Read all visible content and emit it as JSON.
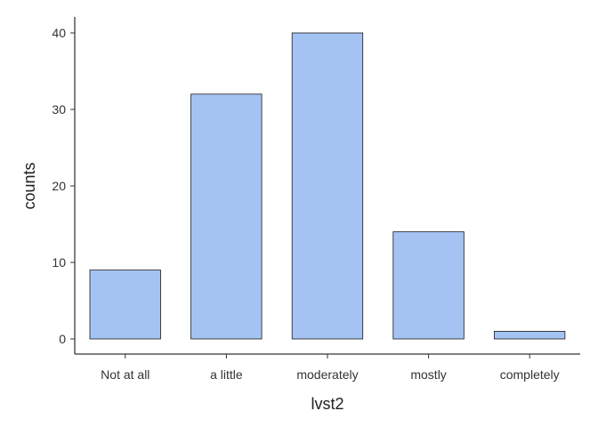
{
  "chart_data": {
    "type": "bar",
    "categories": [
      "Not at all",
      "a little",
      "moderately",
      "mostly",
      "completely"
    ],
    "values": [
      9,
      32,
      40,
      14,
      1
    ],
    "title": "",
    "xlabel": "lvst2",
    "ylabel": "counts",
    "ylim": [
      -1.5,
      42
    ],
    "yticks": [
      0,
      10,
      20,
      30,
      40
    ],
    "grid": false,
    "legend": "none",
    "bar_fill": "#a4c3f2",
    "bar_stroke": "#1a1a1a"
  }
}
